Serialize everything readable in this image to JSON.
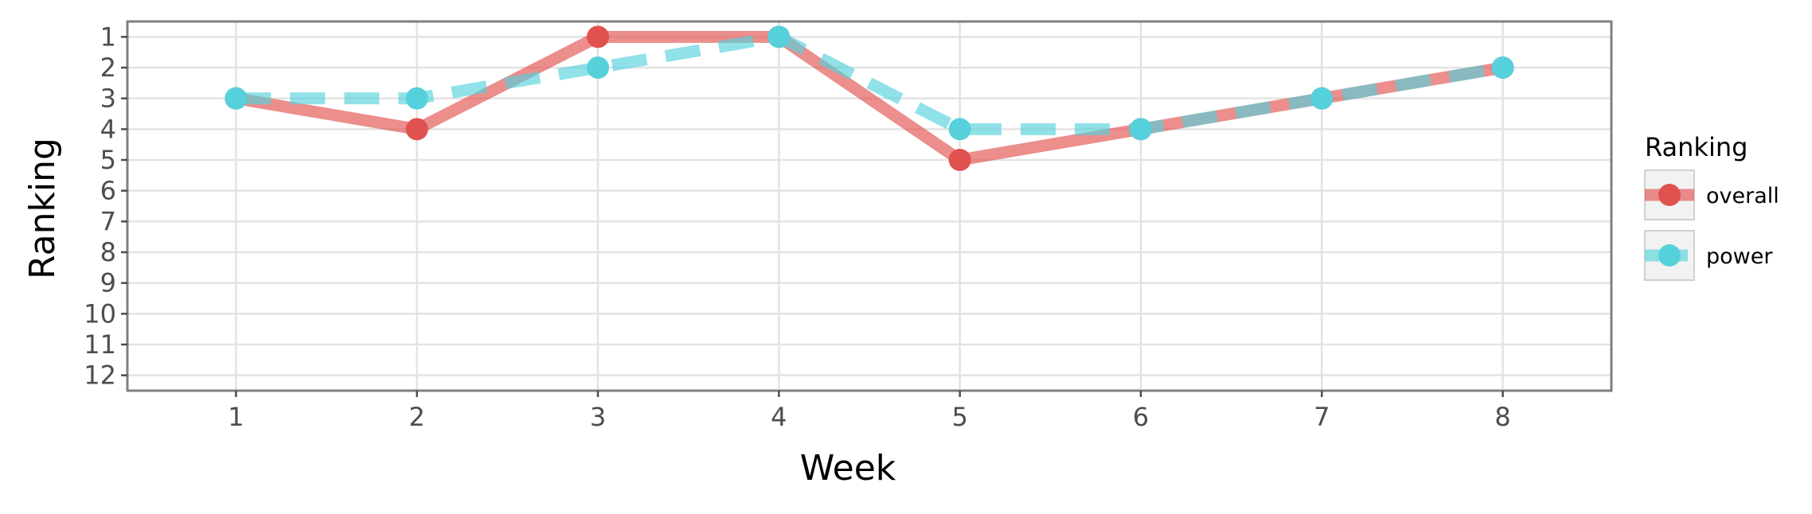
{
  "chart_data": {
    "type": "line",
    "xlabel": "Week",
    "ylabel": "Ranking",
    "x": [
      1,
      2,
      3,
      4,
      5,
      6,
      7,
      8
    ],
    "xlim": [
      0.4,
      8.6
    ],
    "ylim": [
      12.5,
      0.5
    ],
    "y_reversed": true,
    "yticks": [
      1,
      2,
      3,
      4,
      5,
      6,
      7,
      8,
      9,
      10,
      11,
      12
    ],
    "grid": true,
    "series": [
      {
        "name": "overall",
        "values": [
          3,
          4,
          1,
          1,
          5,
          4,
          3,
          2
        ],
        "color": "#e0524f",
        "linestyle": "solid"
      },
      {
        "name": "power",
        "values": [
          3,
          3,
          2,
          1,
          4,
          4,
          3,
          2
        ],
        "color": "#56d1dc",
        "linestyle": "dashed"
      }
    ],
    "legend": {
      "title": "Ranking",
      "position": "right"
    }
  }
}
